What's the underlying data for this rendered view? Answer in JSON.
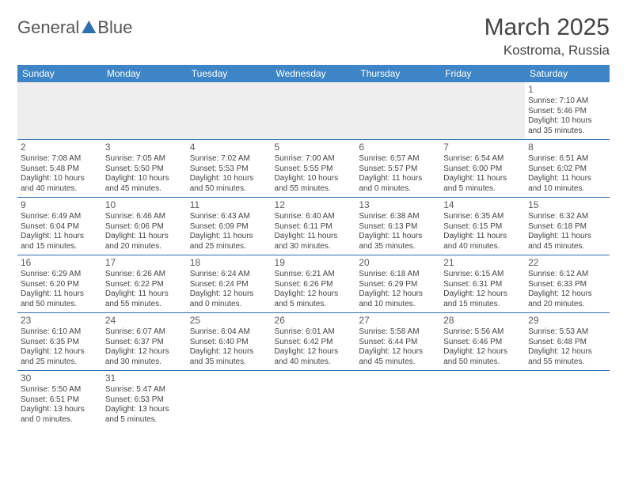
{
  "logo": {
    "part1": "General",
    "part2": "Blue"
  },
  "title": "March 2025",
  "location": "Kostroma, Russia",
  "colors": {
    "header_bg": "#3d85c6",
    "header_text": "#ffffff",
    "rule": "#2f6fb0",
    "text": "#444444",
    "blank_bg": "#eeeeee"
  },
  "weekdays": [
    "Sunday",
    "Monday",
    "Tuesday",
    "Wednesday",
    "Thursday",
    "Friday",
    "Saturday"
  ],
  "weeks": [
    [
      null,
      null,
      null,
      null,
      null,
      null,
      {
        "n": "1",
        "sr": "Sunrise: 7:10 AM",
        "ss": "Sunset: 5:46 PM",
        "d1": "Daylight: 10 hours",
        "d2": "and 35 minutes."
      }
    ],
    [
      {
        "n": "2",
        "sr": "Sunrise: 7:08 AM",
        "ss": "Sunset: 5:48 PM",
        "d1": "Daylight: 10 hours",
        "d2": "and 40 minutes."
      },
      {
        "n": "3",
        "sr": "Sunrise: 7:05 AM",
        "ss": "Sunset: 5:50 PM",
        "d1": "Daylight: 10 hours",
        "d2": "and 45 minutes."
      },
      {
        "n": "4",
        "sr": "Sunrise: 7:02 AM",
        "ss": "Sunset: 5:53 PM",
        "d1": "Daylight: 10 hours",
        "d2": "and 50 minutes."
      },
      {
        "n": "5",
        "sr": "Sunrise: 7:00 AM",
        "ss": "Sunset: 5:55 PM",
        "d1": "Daylight: 10 hours",
        "d2": "and 55 minutes."
      },
      {
        "n": "6",
        "sr": "Sunrise: 6:57 AM",
        "ss": "Sunset: 5:57 PM",
        "d1": "Daylight: 11 hours",
        "d2": "and 0 minutes."
      },
      {
        "n": "7",
        "sr": "Sunrise: 6:54 AM",
        "ss": "Sunset: 6:00 PM",
        "d1": "Daylight: 11 hours",
        "d2": "and 5 minutes."
      },
      {
        "n": "8",
        "sr": "Sunrise: 6:51 AM",
        "ss": "Sunset: 6:02 PM",
        "d1": "Daylight: 11 hours",
        "d2": "and 10 minutes."
      }
    ],
    [
      {
        "n": "9",
        "sr": "Sunrise: 6:49 AM",
        "ss": "Sunset: 6:04 PM",
        "d1": "Daylight: 11 hours",
        "d2": "and 15 minutes."
      },
      {
        "n": "10",
        "sr": "Sunrise: 6:46 AM",
        "ss": "Sunset: 6:06 PM",
        "d1": "Daylight: 11 hours",
        "d2": "and 20 minutes."
      },
      {
        "n": "11",
        "sr": "Sunrise: 6:43 AM",
        "ss": "Sunset: 6:09 PM",
        "d1": "Daylight: 11 hours",
        "d2": "and 25 minutes."
      },
      {
        "n": "12",
        "sr": "Sunrise: 6:40 AM",
        "ss": "Sunset: 6:11 PM",
        "d1": "Daylight: 11 hours",
        "d2": "and 30 minutes."
      },
      {
        "n": "13",
        "sr": "Sunrise: 6:38 AM",
        "ss": "Sunset: 6:13 PM",
        "d1": "Daylight: 11 hours",
        "d2": "and 35 minutes."
      },
      {
        "n": "14",
        "sr": "Sunrise: 6:35 AM",
        "ss": "Sunset: 6:15 PM",
        "d1": "Daylight: 11 hours",
        "d2": "and 40 minutes."
      },
      {
        "n": "15",
        "sr": "Sunrise: 6:32 AM",
        "ss": "Sunset: 6:18 PM",
        "d1": "Daylight: 11 hours",
        "d2": "and 45 minutes."
      }
    ],
    [
      {
        "n": "16",
        "sr": "Sunrise: 6:29 AM",
        "ss": "Sunset: 6:20 PM",
        "d1": "Daylight: 11 hours",
        "d2": "and 50 minutes."
      },
      {
        "n": "17",
        "sr": "Sunrise: 6:26 AM",
        "ss": "Sunset: 6:22 PM",
        "d1": "Daylight: 11 hours",
        "d2": "and 55 minutes."
      },
      {
        "n": "18",
        "sr": "Sunrise: 6:24 AM",
        "ss": "Sunset: 6:24 PM",
        "d1": "Daylight: 12 hours",
        "d2": "and 0 minutes."
      },
      {
        "n": "19",
        "sr": "Sunrise: 6:21 AM",
        "ss": "Sunset: 6:26 PM",
        "d1": "Daylight: 12 hours",
        "d2": "and 5 minutes."
      },
      {
        "n": "20",
        "sr": "Sunrise: 6:18 AM",
        "ss": "Sunset: 6:29 PM",
        "d1": "Daylight: 12 hours",
        "d2": "and 10 minutes."
      },
      {
        "n": "21",
        "sr": "Sunrise: 6:15 AM",
        "ss": "Sunset: 6:31 PM",
        "d1": "Daylight: 12 hours",
        "d2": "and 15 minutes."
      },
      {
        "n": "22",
        "sr": "Sunrise: 6:12 AM",
        "ss": "Sunset: 6:33 PM",
        "d1": "Daylight: 12 hours",
        "d2": "and 20 minutes."
      }
    ],
    [
      {
        "n": "23",
        "sr": "Sunrise: 6:10 AM",
        "ss": "Sunset: 6:35 PM",
        "d1": "Daylight: 12 hours",
        "d2": "and 25 minutes."
      },
      {
        "n": "24",
        "sr": "Sunrise: 6:07 AM",
        "ss": "Sunset: 6:37 PM",
        "d1": "Daylight: 12 hours",
        "d2": "and 30 minutes."
      },
      {
        "n": "25",
        "sr": "Sunrise: 6:04 AM",
        "ss": "Sunset: 6:40 PM",
        "d1": "Daylight: 12 hours",
        "d2": "and 35 minutes."
      },
      {
        "n": "26",
        "sr": "Sunrise: 6:01 AM",
        "ss": "Sunset: 6:42 PM",
        "d1": "Daylight: 12 hours",
        "d2": "and 40 minutes."
      },
      {
        "n": "27",
        "sr": "Sunrise: 5:58 AM",
        "ss": "Sunset: 6:44 PM",
        "d1": "Daylight: 12 hours",
        "d2": "and 45 minutes."
      },
      {
        "n": "28",
        "sr": "Sunrise: 5:56 AM",
        "ss": "Sunset: 6:46 PM",
        "d1": "Daylight: 12 hours",
        "d2": "and 50 minutes."
      },
      {
        "n": "29",
        "sr": "Sunrise: 5:53 AM",
        "ss": "Sunset: 6:48 PM",
        "d1": "Daylight: 12 hours",
        "d2": "and 55 minutes."
      }
    ],
    [
      {
        "n": "30",
        "sr": "Sunrise: 5:50 AM",
        "ss": "Sunset: 6:51 PM",
        "d1": "Daylight: 13 hours",
        "d2": "and 0 minutes."
      },
      {
        "n": "31",
        "sr": "Sunrise: 5:47 AM",
        "ss": "Sunset: 6:53 PM",
        "d1": "Daylight: 13 hours",
        "d2": "and 5 minutes."
      },
      null,
      null,
      null,
      null,
      null
    ]
  ]
}
